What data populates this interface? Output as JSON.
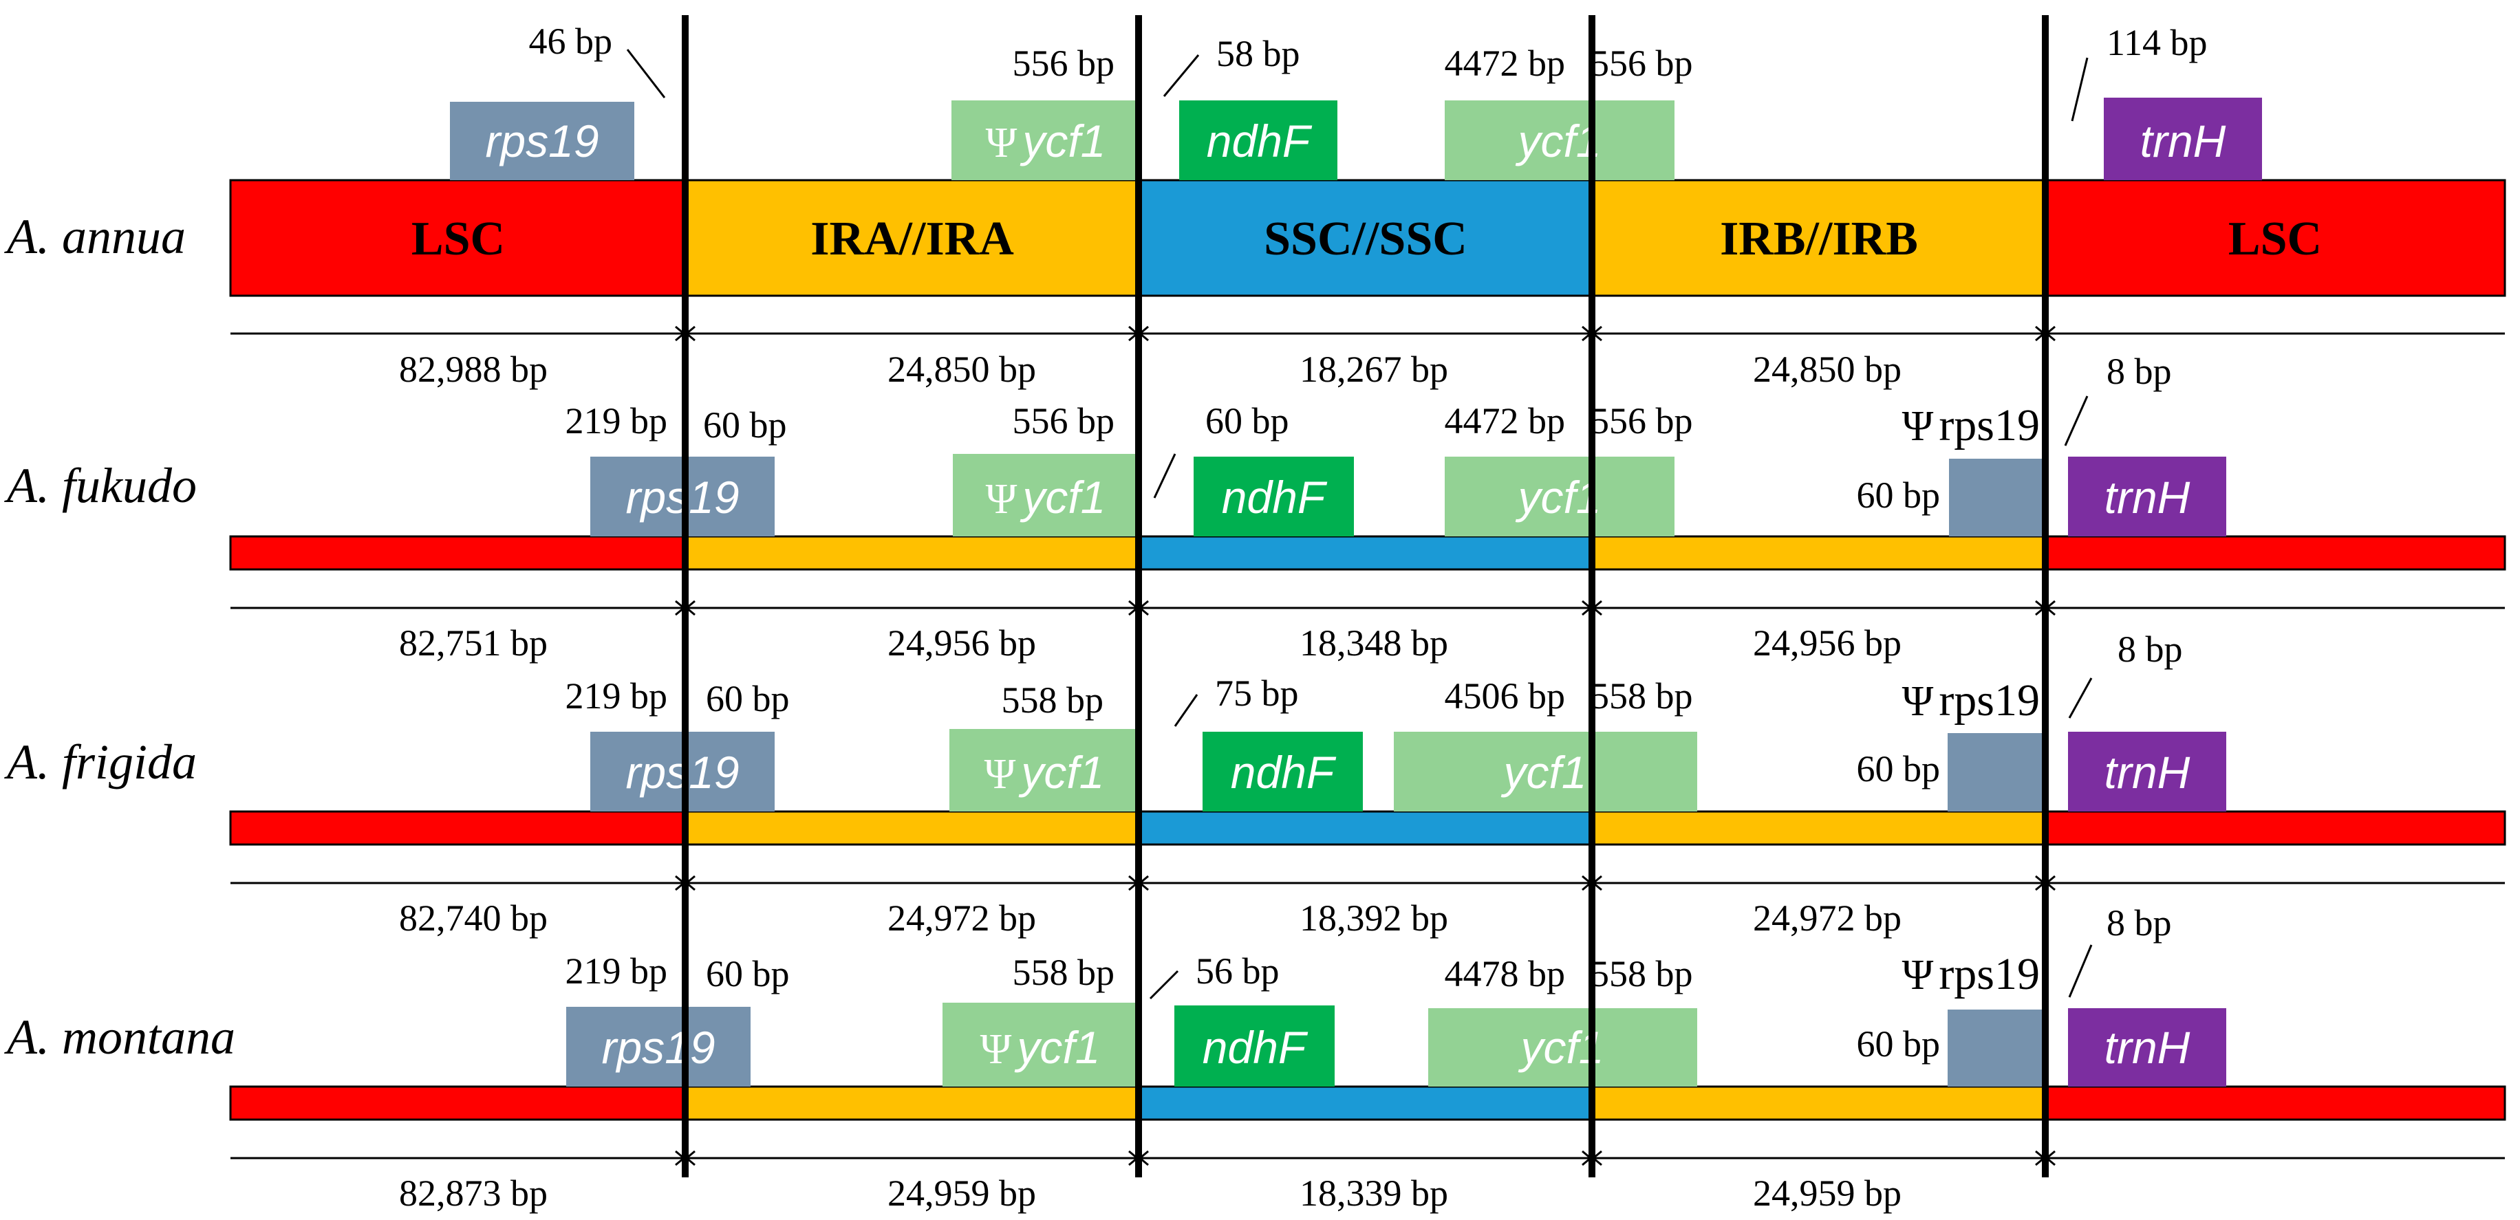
{
  "colors": {
    "LSC": "#ff0000",
    "IR": "#ffc000",
    "SSC": "#1b9ad6",
    "rps19": "#7692ad",
    "ycf1": "#93d294",
    "ndhF": "#00b050",
    "trnH": "#7c2ea0"
  },
  "psi": "Ψ",
  "region_labels": [
    "LSC",
    "IRA//IRA",
    "SSC//SSC",
    "IRB//IRB",
    "LSC"
  ],
  "gene_names": {
    "rps19": "rps19",
    "ycf1": "ycf1",
    "ndhF": "ndhF",
    "trnH": "trnH",
    "rps19_pseudo": "rps19"
  },
  "species": [
    {
      "name": "A. annua",
      "lengths": [
        "82,988 bp",
        "24,850 bp",
        "18,267 bp",
        "24,850 bp"
      ],
      "annotations": {
        "rps19_left": "46 bp",
        "rps19_right": "",
        "psi_ycf1": "556 bp",
        "ndhF": "58 bp",
        "ycf1_left": "4472 bp",
        "ycf1_right": "556 bp",
        "psi_rps19_len": "",
        "trnH": "114 bp"
      }
    },
    {
      "name": "A. fukudo",
      "lengths": [
        "82,751 bp",
        "24,956 bp",
        "18,348 bp",
        "24,956 bp"
      ],
      "annotations": {
        "rps19_left": "219 bp",
        "rps19_right": "60 bp",
        "psi_ycf1": "556 bp",
        "ndhF": "60 bp",
        "ycf1_left": "4472 bp",
        "ycf1_right": "556 bp",
        "psi_rps19_len": "60 bp",
        "trnH": "8 bp"
      }
    },
    {
      "name": "A. frigida",
      "lengths": [
        "82,740 bp",
        "24,972 bp",
        "18,392 bp",
        "24,972 bp"
      ],
      "annotations": {
        "rps19_left": "219 bp",
        "rps19_right": "60 bp",
        "psi_ycf1": "558 bp",
        "ndhF": "75 bp",
        "ycf1_left": "4506 bp",
        "ycf1_right": "558 bp",
        "psi_rps19_len": "60 bp",
        "trnH": "8 bp"
      }
    },
    {
      "name": "A. montana",
      "lengths": [
        "82,873 bp",
        "24,959 bp",
        "18,339 bp",
        "24,959 bp"
      ],
      "annotations": {
        "rps19_left": "219 bp",
        "rps19_right": "60 bp",
        "psi_ycf1": "558 bp",
        "ndhF": "56 bp",
        "ycf1_left": "4478 bp",
        "ycf1_right": "558 bp",
        "psi_rps19_len": "60 bp",
        "trnH": "8 bp"
      }
    }
  ]
}
